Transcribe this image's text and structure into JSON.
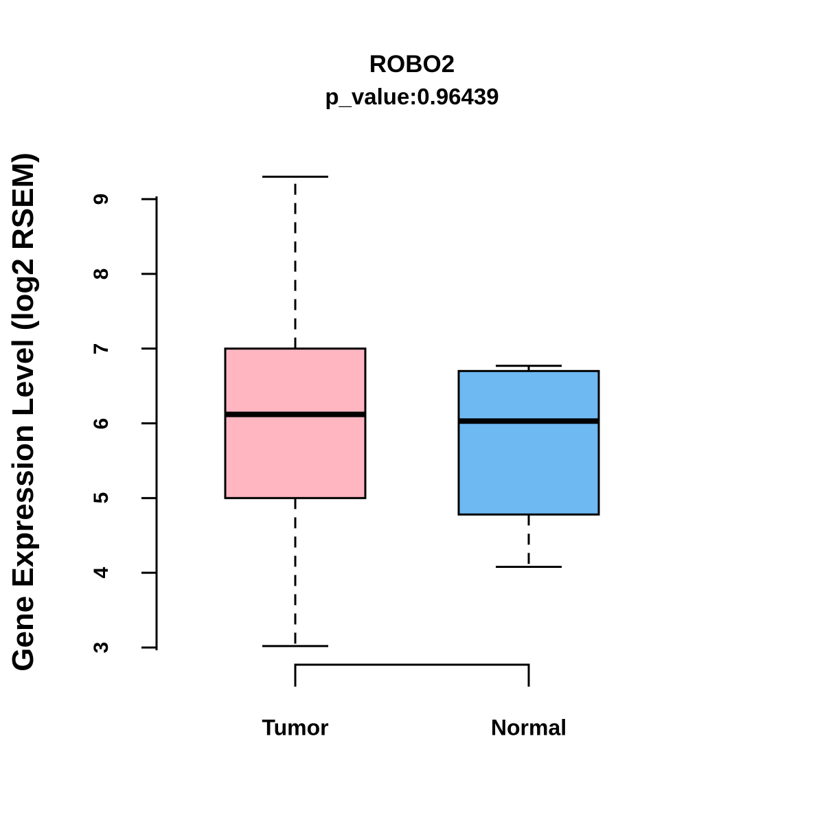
{
  "chart_data": {
    "type": "boxplot",
    "title": "ROBO2",
    "subtitle": "p_value:0.96439",
    "ylabel": "Gene Expression Level (log2 RSEM)",
    "categories": [
      "Tumor",
      "Normal"
    ],
    "yticks": [
      3,
      4,
      5,
      6,
      7,
      8,
      9
    ],
    "ylim": [
      3,
      9
    ],
    "grid": false,
    "legend": "none",
    "boxes": [
      {
        "label": "Tumor",
        "color": "#FFB6C1",
        "whisker_low": 3.02,
        "q1": 5.0,
        "median": 6.12,
        "q3": 7.0,
        "whisker_high": 9.3
      },
      {
        "label": "Normal",
        "color": "#6FB9F2",
        "whisker_low": 4.08,
        "q1": 4.78,
        "median": 6.03,
        "q3": 6.7,
        "whisker_high": 6.77
      }
    ]
  }
}
